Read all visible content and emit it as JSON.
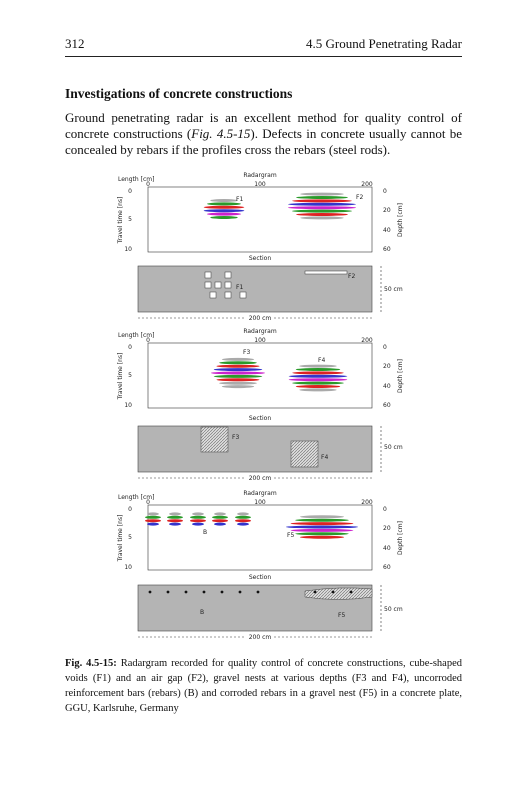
{
  "header": {
    "page": "312",
    "running": "4.5 Ground Penetrating Radar"
  },
  "section_title": "Investigations of concrete constructions",
  "paragraph": {
    "before": "Ground penetrating radar is an excellent method for quality control of concrete constructions (",
    "ref": "Fig. 4.5-15",
    "after": "). Defects in concrete usually cannot be concealed by rebars if the profiles cross the rebars (steel rods)."
  },
  "figure": {
    "panels": [
      {
        "length_label": "Length [cm]",
        "radargram_label": "Radargram",
        "x_ticks": [
          "0",
          "100",
          "200"
        ],
        "time_label": "Travel time [ns]",
        "time_ticks": [
          "0",
          "5",
          "10"
        ],
        "depth_label": "Depth [cm]",
        "depth_ticks": [
          "0",
          "20",
          "40",
          "60"
        ],
        "radargram_marks": [
          "F1",
          "F2"
        ],
        "section_label": "Section",
        "section_marks": [
          "F1",
          "F2"
        ],
        "depth_scale": "50 cm",
        "length_scale": "200 cm"
      },
      {
        "length_label": "Length [cm]",
        "radargram_label": "Radargram",
        "x_ticks": [
          "0",
          "100",
          "200"
        ],
        "time_label": "Travel time [ns]",
        "time_ticks": [
          "0",
          "5",
          "10"
        ],
        "depth_label": "Depth [cm]",
        "depth_ticks": [
          "0",
          "20",
          "40",
          "60"
        ],
        "radargram_marks": [
          "F3",
          "F4"
        ],
        "section_label": "Section",
        "section_marks": [
          "F3",
          "F4"
        ],
        "depth_scale": "50 cm",
        "length_scale": "200 cm"
      },
      {
        "length_label": "Length [cm]",
        "radargram_label": "Radargram",
        "x_ticks": [
          "0",
          "100",
          "200"
        ],
        "time_label": "Travel time [ns]",
        "time_ticks": [
          "0",
          "5",
          "10"
        ],
        "depth_label": "Depth [cm]",
        "depth_ticks": [
          "0",
          "20",
          "40",
          "60"
        ],
        "radargram_marks": [
          "B",
          "F5"
        ],
        "section_label": "Section",
        "section_marks": [
          "B",
          "F5"
        ],
        "depth_scale": "50 cm",
        "length_scale": "200 cm"
      }
    ]
  },
  "caption": {
    "label": "Fig. 4.5-15:",
    "text": "Radargram recorded for quality control of concrete constructions, cube-shaped voids (F1) and an air gap (F2), gravel nests at various depths (F3 and F4), uncorroded reinforcement bars (rebars) (B) and corroded rebars in a gravel nest (F5) in a concrete plate, GGU, Karlsruhe, Germany"
  }
}
